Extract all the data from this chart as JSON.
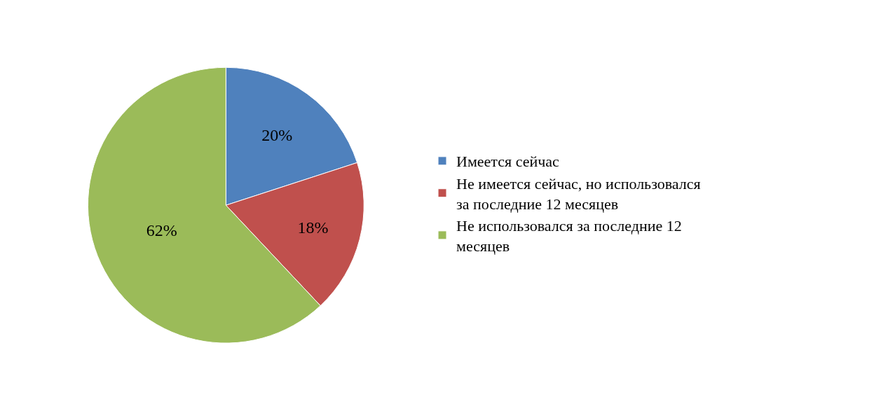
{
  "chart_data": {
    "type": "pie",
    "categories": [
      "Имеется сейчас",
      "Не имеется сейчас, но использовался за последние 12 месяцев",
      "Не использовался за последние 12 месяцев"
    ],
    "values": [
      20,
      18,
      62
    ],
    "colors": [
      "#4f81bd",
      "#c0504d",
      "#9bbb59"
    ],
    "value_labels": [
      "20%",
      "18%",
      "62%"
    ],
    "legend": "right"
  }
}
